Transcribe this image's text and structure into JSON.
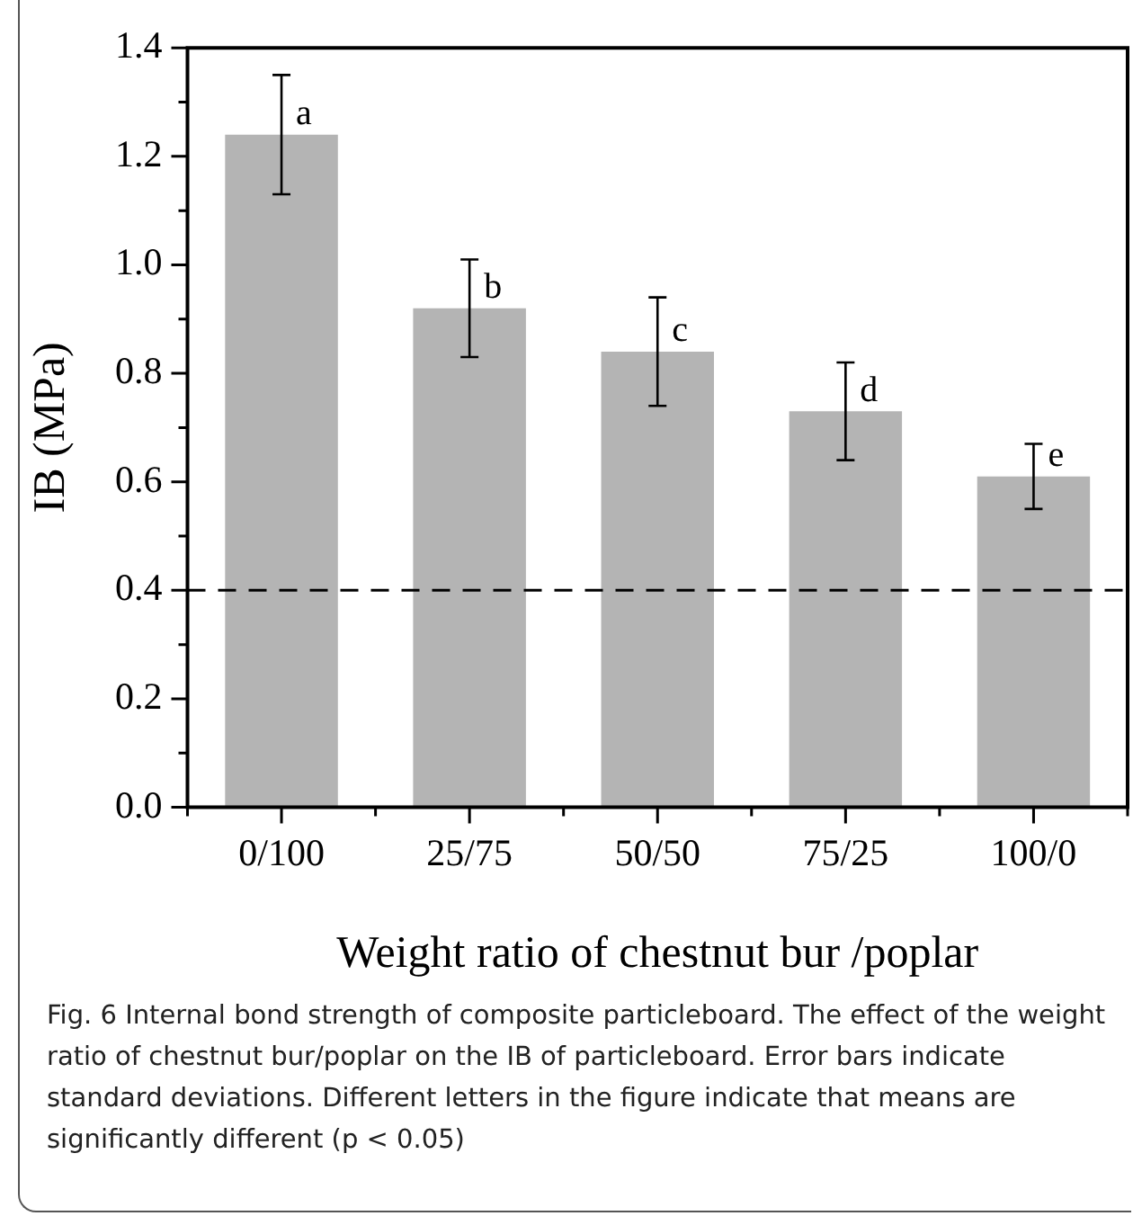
{
  "chart_data": {
    "type": "bar",
    "xlabel": "Weight ratio of chestnut bur /poplar",
    "ylabel": "IB (MPa)",
    "categories": [
      "0/100",
      "25/75",
      "50/50",
      "75/25",
      "100/0"
    ],
    "values": [
      1.24,
      0.92,
      0.84,
      0.73,
      0.61
    ],
    "errors": [
      0.11,
      0.09,
      0.1,
      0.09,
      0.06
    ],
    "color": "#b4b4b4",
    "ylim": [
      0,
      1.4
    ],
    "yticks": [
      {
        "value": 0,
        "label": "0.0"
      },
      {
        "value": 0.1,
        "label": null
      },
      {
        "value": 0.2,
        "label": "0.2"
      },
      {
        "value": 0.3,
        "label": null
      },
      {
        "value": 0.4,
        "label": "0.4"
      },
      {
        "value": 0.5,
        "label": null
      },
      {
        "value": 0.6,
        "label": "0.6"
      },
      {
        "value": 0.7,
        "label": null
      },
      {
        "value": 0.8,
        "label": "0.8"
      },
      {
        "value": 0.9,
        "label": null
      },
      {
        "value": 1,
        "label": "1.0"
      },
      {
        "value": 1.1,
        "label": null
      },
      {
        "value": 1.2,
        "label": "1.2"
      },
      {
        "value": 1.3,
        "label": null
      },
      {
        "value": 1.4,
        "label": "1.4"
      }
    ],
    "ref_lines": [
      {
        "axis": "y",
        "value": 0.4,
        "line_style": "dashed",
        "color": "#000000"
      }
    ],
    "annotations": [
      {
        "text": "a",
        "x": "0/100",
        "y": 1.24
      },
      {
        "text": "b",
        "x": "25/75",
        "y": 0.92
      },
      {
        "text": "c",
        "x": "50/50",
        "y": 0.84
      },
      {
        "text": "d",
        "x": "75/25",
        "y": 0.73
      },
      {
        "text": "e",
        "x": "100/0",
        "y": 0.61
      },
      "Fig. 6  Internal bond strength of composite particleboard. The effect of the weight ratio of chestnut bur/poplar on the IB of particleboard. Error bars indicate standard deviations. Different letters in the figure indicate that means are significantly different (p < 0.05)"
    ],
    "grid": false,
    "legend": false
  }
}
